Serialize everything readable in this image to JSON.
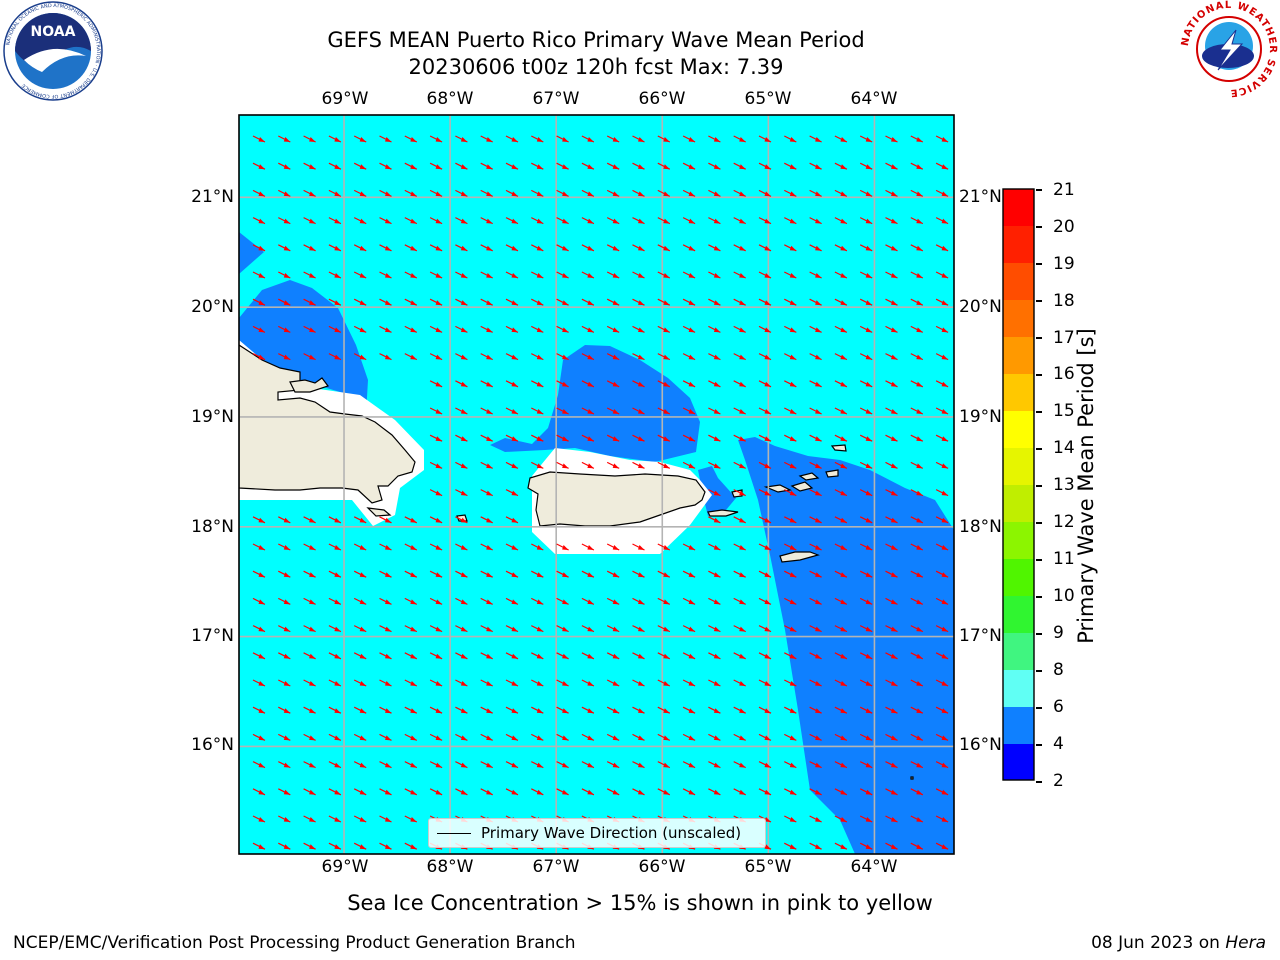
{
  "title": {
    "line1": "GEFS MEAN Puerto Rico Primary Wave Mean Period",
    "line2": "20230606 t00z 120h fcst   Max: 7.39"
  },
  "logos": {
    "left": {
      "text": "NOAA",
      "ring_text": "NATIONAL OCEANIC AND ATMOSPHERIC ADMINISTRATION · U.S. DEPARTMENT OF COMMERCE"
    },
    "right": {
      "ring_text": "NATIONAL WEATHER SERVICE"
    }
  },
  "map": {
    "lon_ticks": [
      "69°W",
      "68°W",
      "67°W",
      "66°W",
      "65°W",
      "64°W"
    ],
    "lat_ticks": [
      "21°N",
      "20°N",
      "19°N",
      "18°N",
      "17°N",
      "16°N"
    ],
    "extent": {
      "lon": [
        -69.99,
        -63.25
      ],
      "lat": [
        15.02,
        21.75
      ]
    },
    "grid": true,
    "colors": {
      "ocean_6_8": "#00ffff",
      "ocean_4_6": "#0f80ff",
      "land": "#efecdc",
      "arrows": "#ff0000"
    },
    "legend": {
      "label": "Primary Wave Direction (unscaled)"
    }
  },
  "colorbar": {
    "label": "Primary Wave Mean Period [s]",
    "ticks": [
      "21",
      "20",
      "19",
      "18",
      "17",
      "16",
      "15",
      "14",
      "13",
      "12",
      "11",
      "10",
      "9",
      "8",
      "6",
      "4",
      "2"
    ],
    "colors": [
      "#ff0000",
      "#ff2000",
      "#ff4d00",
      "#ff7000",
      "#ff9900",
      "#ffc800",
      "#ffff00",
      "#e6f500",
      "#c0ee00",
      "#8cf500",
      "#50f500",
      "#30f530",
      "#40f580",
      "#7dffd4",
      "#60fff4",
      "#00ffff",
      "#0f80ff",
      "#0000ff"
    ]
  },
  "footer": {
    "note": "Sea Ice Concentration > 15% is shown in pink to yellow",
    "left": "NCEP/EMC/Verification Post Processing Product Generation Branch",
    "date": "08 Jun 2023 on ",
    "machine": "Hera"
  }
}
